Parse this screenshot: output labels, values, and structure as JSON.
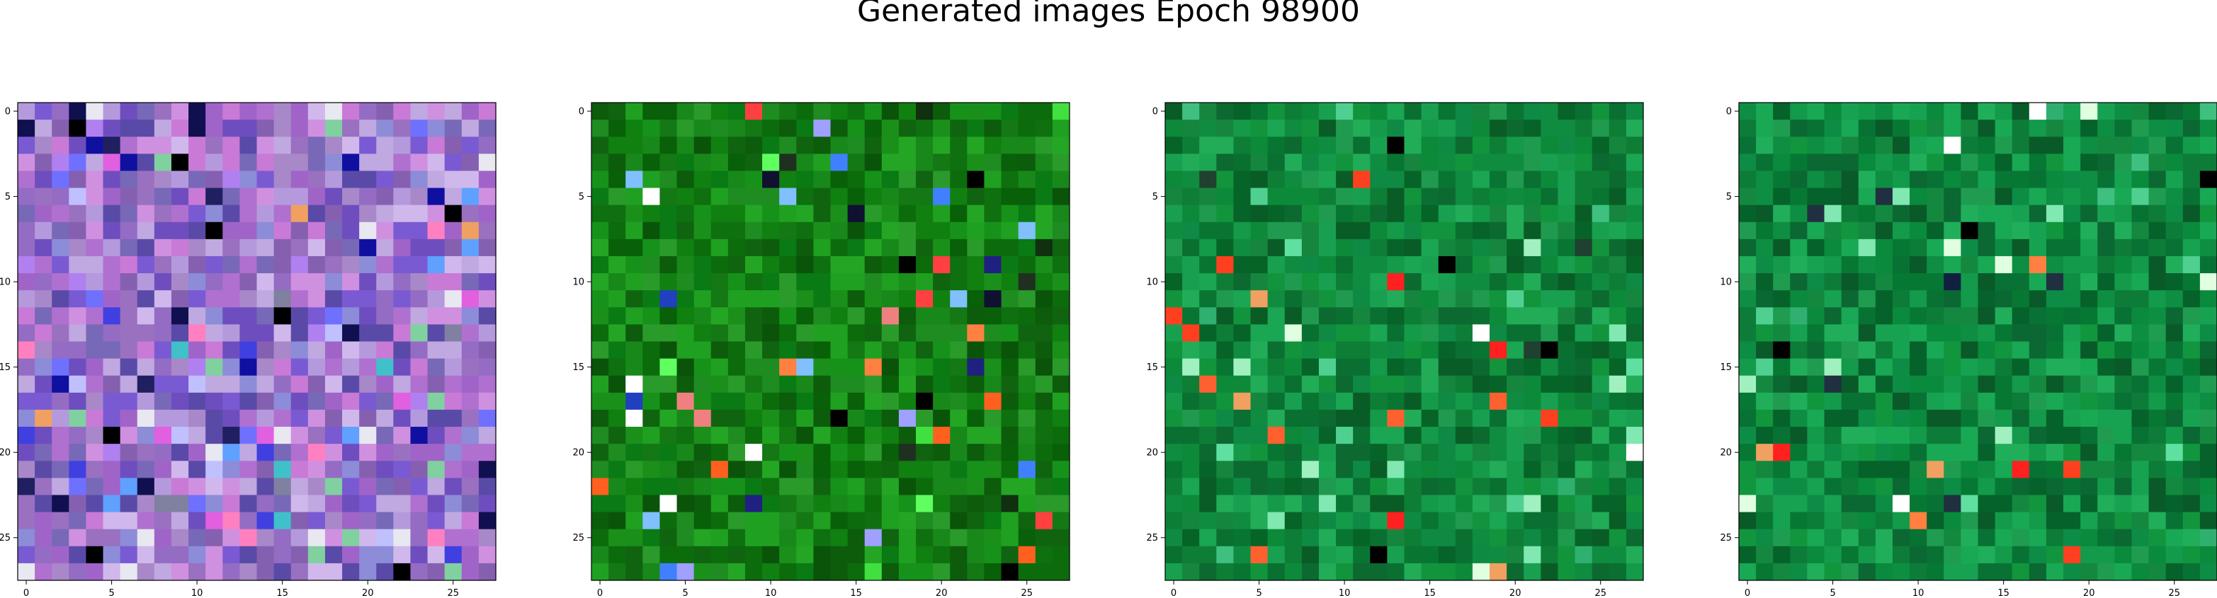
{
  "title": "Generated images Epoch 98900",
  "chart_data": [
    {
      "type": "heatmap",
      "title": "",
      "xlabel": "",
      "ylabel": "",
      "xlim": [
        -0.5,
        27.5
      ],
      "ylim": [
        27.5,
        -0.5
      ],
      "x_ticks": [
        "0",
        "5",
        "10",
        "15",
        "20",
        "25"
      ],
      "y_ticks": [
        "0",
        "5",
        "10",
        "15",
        "20",
        "25"
      ],
      "grid": false,
      "palette": [
        "#a064c8",
        "#7a5ad2",
        "#c87ad6",
        "#8c8cd8",
        "#b49adc",
        "#6e4ebe",
        "#d090e0",
        "#9a70c0",
        "#5a4aa8",
        "#c0a8e0",
        "#7868b8",
        "#a888c8",
        "#d0b8ec",
        "#946cc4",
        "#b070d0",
        "#8660b0"
      ],
      "accents": [
        "#1010a0",
        "#202060",
        "#000000",
        "#e8e8f0",
        "#ff80c0",
        "#40c0c8",
        "#80d0a0",
        "#4040e0",
        "#b080f0",
        "#f0a060",
        "#7070ff",
        "#101050",
        "#e060e0",
        "#8080a0",
        "#c0c0ff",
        "#60a0ff"
      ],
      "seed": 11,
      "accent_rate": 0.18
    },
    {
      "type": "heatmap",
      "title": "",
      "xlabel": "",
      "ylabel": "",
      "xlim": [
        -0.5,
        27.5
      ],
      "ylim": [
        27.5,
        -0.5
      ],
      "x_ticks": [
        "0",
        "5",
        "10",
        "15",
        "20",
        "25"
      ],
      "y_ticks": [
        "0",
        "5",
        "10",
        "15",
        "20",
        "25"
      ],
      "grid": false,
      "palette": [
        "#108010",
        "#0c6c0c",
        "#1a901a",
        "#086008",
        "#20a020",
        "#147814",
        "#0a540a",
        "#2a9a2a",
        "#0e700e",
        "#18881a",
        "#24a624",
        "#106410",
        "#0a7a14",
        "#1e8c20",
        "#0c5c0c",
        "#16921a"
      ],
      "accents": [
        "#000000",
        "#101030",
        "#2040c0",
        "#80c0ff",
        "#ff8040",
        "#ff4040",
        "#f08080",
        "#ffffff",
        "#40e040",
        "#203020",
        "#a0a0ff",
        "#202080",
        "#ff6020",
        "#103010",
        "#60ff60",
        "#4080ff"
      ],
      "seed": 29,
      "accent_rate": 0.08
    },
    {
      "type": "heatmap",
      "title": "",
      "xlabel": "",
      "ylabel": "",
      "xlim": [
        -0.5,
        27.5
      ],
      "ylim": [
        27.5,
        -0.5
      ],
      "x_ticks": [
        "0",
        "5",
        "10",
        "15",
        "20",
        "25"
      ],
      "y_ticks": [
        "0",
        "5",
        "10",
        "15",
        "20",
        "25"
      ],
      "grid": false,
      "palette": [
        "#0c8a3a",
        "#108c40",
        "#0a7032",
        "#149a48",
        "#066428",
        "#18a050",
        "#0e7e36",
        "#209a4e",
        "#0a5c26",
        "#12943c",
        "#1aa652",
        "#0c6a30",
        "#16863e",
        "#22ac58",
        "#087632",
        "#0e8a44"
      ],
      "accents": [
        "#60e0a0",
        "#ff4020",
        "#ff8040",
        "#e0ffe0",
        "#000000",
        "#103050",
        "#40c080",
        "#f0a060",
        "#ffffff",
        "#80e8b0",
        "#ff2020",
        "#30b070",
        "#204030",
        "#a0f0c0",
        "#ff6030",
        "#50d090"
      ],
      "seed": 47,
      "accent_rate": 0.07
    },
    {
      "type": "heatmap",
      "title": "",
      "xlabel": "",
      "ylabel": "",
      "xlim": [
        -0.5,
        27.5
      ],
      "ylim": [
        27.5,
        -0.5
      ],
      "x_ticks": [
        "0",
        "5",
        "10",
        "15",
        "20",
        "25"
      ],
      "y_ticks": [
        "0",
        "5",
        "10",
        "15",
        "20",
        "25"
      ],
      "grid": false,
      "palette": [
        "#0a8a3c",
        "#0e8e42",
        "#087234",
        "#139a4a",
        "#05622a",
        "#17a252",
        "#0d7c38",
        "#1f9c50",
        "#095a28",
        "#11963e",
        "#19a854",
        "#0b6832",
        "#158840",
        "#21ae5a",
        "#077834",
        "#0d8c46"
      ],
      "accents": [
        "#60e0a0",
        "#ff4020",
        "#ff8040",
        "#e0ffe0",
        "#000000",
        "#102040",
        "#40c080",
        "#f0a060",
        "#ffffff",
        "#80e8b0",
        "#ff2020",
        "#30b070",
        "#203040",
        "#a0f0c0",
        "#ff6030",
        "#50d090"
      ],
      "seed": 53,
      "accent_rate": 0.07
    }
  ]
}
